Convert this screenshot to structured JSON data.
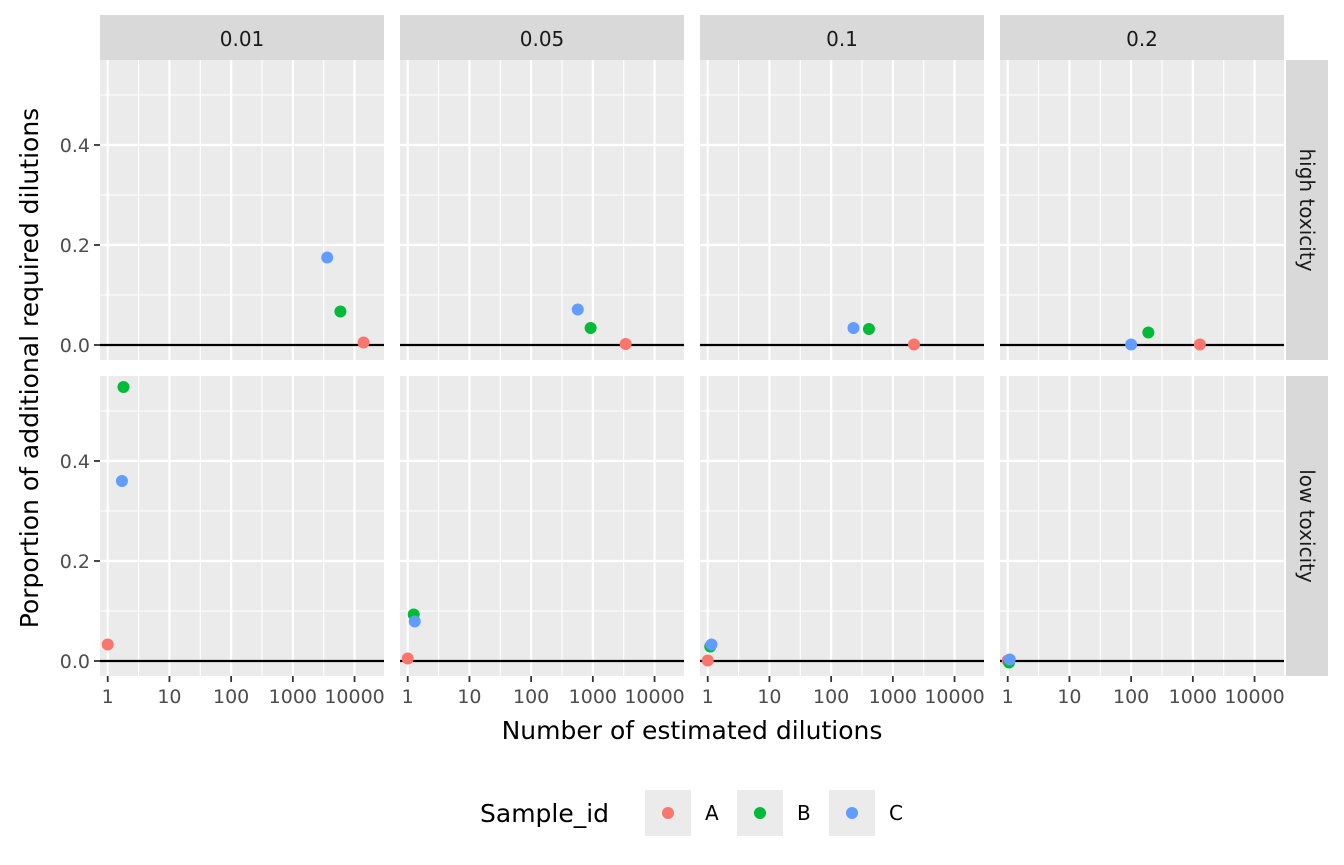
{
  "chart_data": {
    "type": "scatter",
    "facet_cols": [
      "0.01",
      "0.05",
      "0.1",
      "0.2"
    ],
    "facet_rows": [
      "high toxicity",
      "low toxicity"
    ],
    "xlabel": "Number of estimated dilutions",
    "ylabel": "Porportion of additional required dilutions",
    "x_scale": "log10",
    "xlim": [
      0.75,
      30000
    ],
    "ylim": [
      -0.03,
      0.57
    ],
    "x_ticks": [
      1,
      10,
      100,
      1000,
      10000
    ],
    "x_tick_labels": [
      "1",
      "10",
      "100",
      "1000",
      "10000"
    ],
    "y_ticks": [
      0,
      0.2,
      0.4
    ],
    "y_tick_labels": [
      "0.0",
      "0.2",
      "0.4"
    ],
    "hline": 0,
    "grid": true,
    "legend": {
      "title": "Sample_id",
      "position": "bottom",
      "entries": [
        {
          "name": "A",
          "color": "#F8766D"
        },
        {
          "name": "B",
          "color": "#00BA38"
        },
        {
          "name": "C",
          "color": "#619CFF"
        }
      ]
    },
    "points": [
      {
        "row": "high toxicity",
        "col": "0.01",
        "sample": "A",
        "x": 14000,
        "y": 0.005
      },
      {
        "row": "high toxicity",
        "col": "0.01",
        "sample": "B",
        "x": 5900,
        "y": 0.067
      },
      {
        "row": "high toxicity",
        "col": "0.01",
        "sample": "C",
        "x": 3600,
        "y": 0.175
      },
      {
        "row": "high toxicity",
        "col": "0.05",
        "sample": "A",
        "x": 3400,
        "y": 0.002
      },
      {
        "row": "high toxicity",
        "col": "0.05",
        "sample": "B",
        "x": 920,
        "y": 0.034
      },
      {
        "row": "high toxicity",
        "col": "0.05",
        "sample": "C",
        "x": 570,
        "y": 0.071
      },
      {
        "row": "high toxicity",
        "col": "0.1",
        "sample": "A",
        "x": 2200,
        "y": 0.001
      },
      {
        "row": "high toxicity",
        "col": "0.1",
        "sample": "B",
        "x": 410,
        "y": 0.032
      },
      {
        "row": "high toxicity",
        "col": "0.1",
        "sample": "C",
        "x": 230,
        "y": 0.034
      },
      {
        "row": "high toxicity",
        "col": "0.2",
        "sample": "A",
        "x": 1300,
        "y": 0.001
      },
      {
        "row": "high toxicity",
        "col": "0.2",
        "sample": "B",
        "x": 190,
        "y": 0.025
      },
      {
        "row": "high toxicity",
        "col": "0.2",
        "sample": "C",
        "x": 100,
        "y": 0.001
      },
      {
        "row": "low toxicity",
        "col": "0.01",
        "sample": "A",
        "x": 1.0,
        "y": 0.033
      },
      {
        "row": "low toxicity",
        "col": "0.01",
        "sample": "B",
        "x": 1.8,
        "y": 0.548
      },
      {
        "row": "low toxicity",
        "col": "0.01",
        "sample": "C",
        "x": 1.7,
        "y": 0.36
      },
      {
        "row": "low toxicity",
        "col": "0.05",
        "sample": "A",
        "x": 1.0,
        "y": 0.005
      },
      {
        "row": "low toxicity",
        "col": "0.05",
        "sample": "B",
        "x": 1.25,
        "y": 0.093
      },
      {
        "row": "low toxicity",
        "col": "0.05",
        "sample": "C",
        "x": 1.3,
        "y": 0.079
      },
      {
        "row": "low toxicity",
        "col": "0.1",
        "sample": "A",
        "x": 1.0,
        "y": 0.001
      },
      {
        "row": "low toxicity",
        "col": "0.1",
        "sample": "B",
        "x": 1.1,
        "y": 0.029
      },
      {
        "row": "low toxicity",
        "col": "0.1",
        "sample": "C",
        "x": 1.15,
        "y": 0.033
      },
      {
        "row": "low toxicity",
        "col": "0.2",
        "sample": "A",
        "x": 1.0,
        "y": 0.001
      },
      {
        "row": "low toxicity",
        "col": "0.2",
        "sample": "B",
        "x": 1.05,
        "y": -0.003
      },
      {
        "row": "low toxicity",
        "col": "0.2",
        "sample": "C",
        "x": 1.08,
        "y": 0.003
      }
    ]
  }
}
